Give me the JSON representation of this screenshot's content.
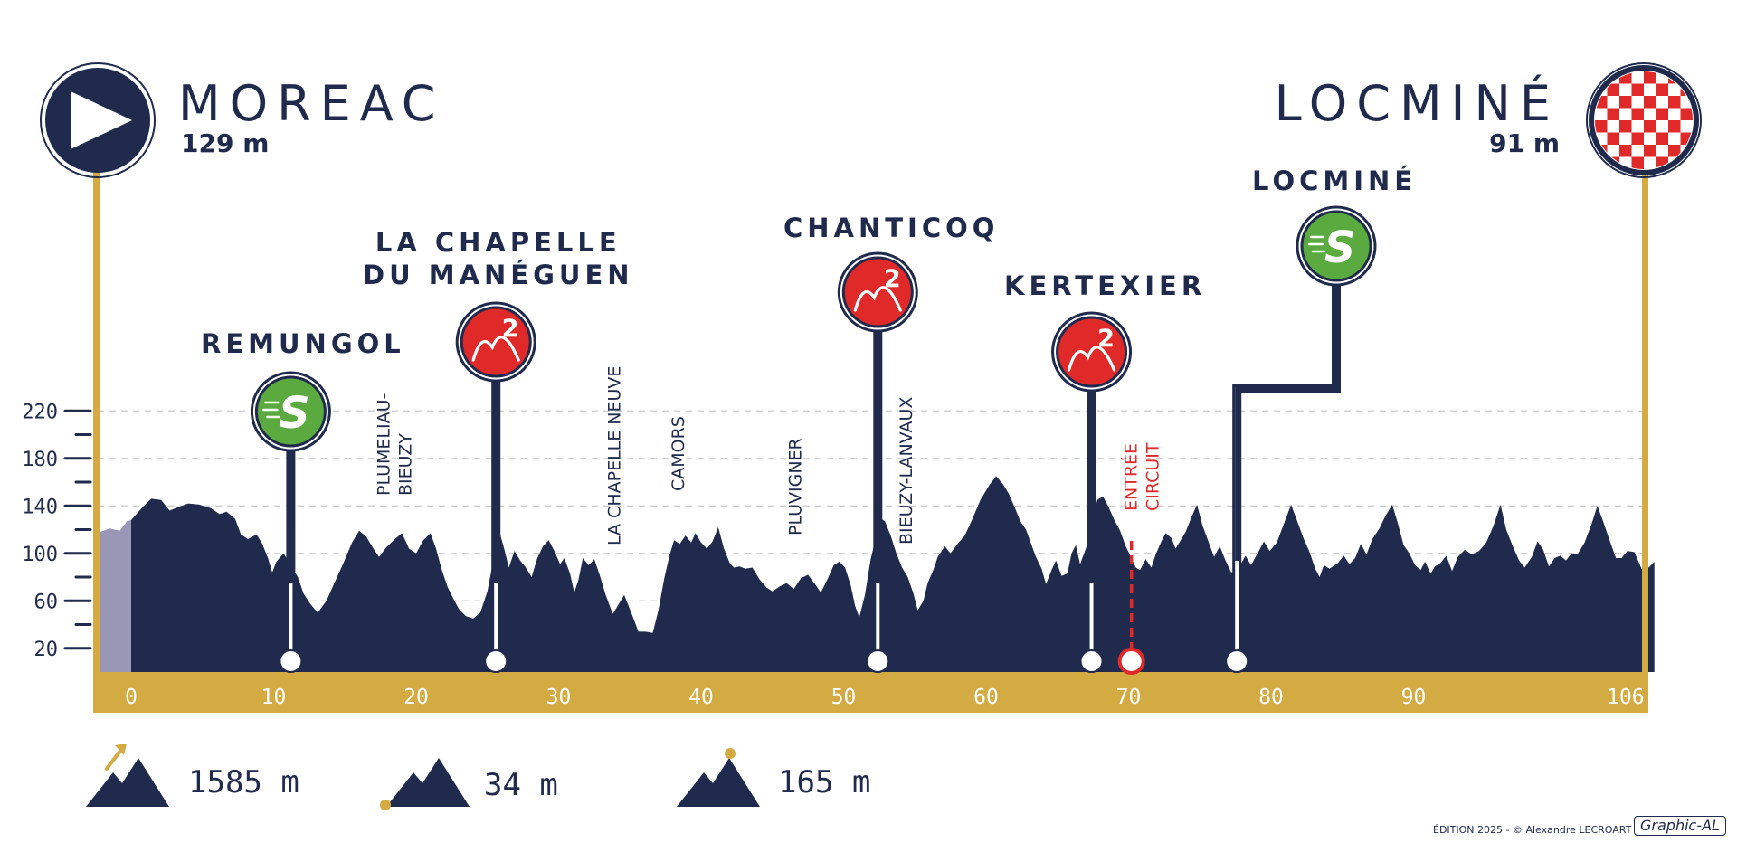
{
  "start": {
    "city": "MOREAC",
    "altitude": "129 m"
  },
  "finish": {
    "city": "LOCMINÉ",
    "altitude": "91 m"
  },
  "climbs": [
    {
      "name": "REMUNGOL",
      "type": "sprint",
      "badge": "S",
      "km": 11.2
    },
    {
      "name": "LA CHAPELLE\nDU MANÉGUEN",
      "type": "climb",
      "badge": "2",
      "km": 25.6
    },
    {
      "name": "CHANTICOQ",
      "type": "climb",
      "badge": "2",
      "km": 52.4
    },
    {
      "name": "KERTEXIER",
      "type": "climb",
      "badge": "2",
      "km": 67.4
    },
    {
      "name": "LOCMINÉ",
      "type": "sprint",
      "badge": "S",
      "km": 77.6
    }
  ],
  "circuit_entry": {
    "label": "ENTRÉE\nCIRCUIT",
    "km": 70.2
  },
  "towns": [
    {
      "name": "PLUMELIAU-\nBIEUZY",
      "km": 18.5
    },
    {
      "name": "LA CHAPELLE NEUVE",
      "km": 33.8
    },
    {
      "name": "CAMORS",
      "km": 38.3
    },
    {
      "name": "PLUVIGNER",
      "km": 46.5
    },
    {
      "name": "BIEUZY-LANVAUX",
      "km": 54.3
    }
  ],
  "stats": {
    "total_climbing": "1585 m",
    "min_altitude": "34 m",
    "max_altitude": "165 m"
  },
  "credit": "ÉDITION 2025 - © Alexandre LECROART",
  "brand": "Graphic-AL",
  "colors": {
    "navy": "#1f2a4d",
    "gold": "#d4aa42",
    "sprint_green": "#5aaa3f",
    "climb_red": "#e02a2a",
    "neutral_zone": "#9996b6"
  },
  "chart_data": {
    "type": "area",
    "xlabel": "",
    "ylabel": "",
    "xlim": [
      0,
      106.9
    ],
    "ylim": [
      0,
      240
    ],
    "x_ticks": [
      {
        "v": 0,
        "l": "0"
      },
      {
        "v": 10,
        "l": "10"
      },
      {
        "v": 20,
        "l": "20"
      },
      {
        "v": 30,
        "l": "30"
      },
      {
        "v": 40,
        "l": "40"
      },
      {
        "v": 50,
        "l": "50"
      },
      {
        "v": 60,
        "l": "60"
      },
      {
        "v": 70,
        "l": "70"
      },
      {
        "v": 80,
        "l": "80"
      },
      {
        "v": 90,
        "l": "90"
      },
      {
        "v": 106.9,
        "l": "106,9"
      }
    ],
    "y_ticks": [
      20,
      60,
      100,
      140,
      180,
      220
    ],
    "grid": true,
    "neutral_zone": [
      -2.2,
      0
    ],
    "profile": [
      [
        -2.2,
        118
      ],
      [
        -1.5,
        121
      ],
      [
        -0.8,
        119
      ],
      [
        -0.3,
        127
      ],
      [
        0,
        128
      ],
      [
        0.8,
        139
      ],
      [
        1.4,
        146
      ],
      [
        2.1,
        145
      ],
      [
        2.7,
        136
      ],
      [
        3.3,
        139
      ],
      [
        4,
        142
      ],
      [
        4.8,
        141
      ],
      [
        5.6,
        138
      ],
      [
        6.2,
        133
      ],
      [
        6.7,
        135
      ],
      [
        7.3,
        129
      ],
      [
        7.7,
        116
      ],
      [
        8.2,
        112
      ],
      [
        8.8,
        116
      ],
      [
        9.2,
        108
      ],
      [
        9.6,
        96
      ],
      [
        9.9,
        84
      ],
      [
        10.2,
        93
      ],
      [
        10.7,
        100
      ],
      [
        11.2,
        90
      ],
      [
        11.7,
        80
      ],
      [
        12.1,
        66
      ],
      [
        12.6,
        57
      ],
      [
        13.1,
        50
      ],
      [
        13.7,
        60
      ],
      [
        14.3,
        76
      ],
      [
        14.9,
        92
      ],
      [
        15.5,
        109
      ],
      [
        16,
        119
      ],
      [
        16.5,
        114
      ],
      [
        17,
        104
      ],
      [
        17.4,
        97
      ],
      [
        17.9,
        105
      ],
      [
        18.5,
        112
      ],
      [
        19,
        117
      ],
      [
        19.5,
        104
      ],
      [
        20,
        100
      ],
      [
        20.5,
        111
      ],
      [
        21,
        117
      ],
      [
        21.4,
        104
      ],
      [
        21.8,
        86
      ],
      [
        22.2,
        72
      ],
      [
        22.6,
        62
      ],
      [
        23,
        53
      ],
      [
        23.5,
        47
      ],
      [
        24,
        45
      ],
      [
        24.5,
        50
      ],
      [
        25,
        68
      ],
      [
        25.4,
        93
      ],
      [
        25.8,
        120
      ],
      [
        26.2,
        103
      ],
      [
        26.5,
        88
      ],
      [
        26.9,
        102
      ],
      [
        27.3,
        94
      ],
      [
        27.7,
        88
      ],
      [
        28.1,
        80
      ],
      [
        28.5,
        96
      ],
      [
        28.9,
        106
      ],
      [
        29.3,
        111
      ],
      [
        29.7,
        102
      ],
      [
        30.1,
        91
      ],
      [
        30.4,
        96
      ],
      [
        30.8,
        83
      ],
      [
        31.1,
        67
      ],
      [
        31.4,
        78
      ],
      [
        31.7,
        96
      ],
      [
        32.1,
        90
      ],
      [
        32.5,
        95
      ],
      [
        32.9,
        81
      ],
      [
        33.3,
        65
      ],
      [
        33.8,
        49
      ],
      [
        34.2,
        57
      ],
      [
        34.6,
        65
      ],
      [
        35.1,
        50
      ],
      [
        35.6,
        34
      ],
      [
        36.1,
        34
      ],
      [
        36.6,
        33
      ],
      [
        37,
        52
      ],
      [
        37.4,
        78
      ],
      [
        37.8,
        99
      ],
      [
        38.1,
        111
      ],
      [
        38.5,
        108
      ],
      [
        38.9,
        115
      ],
      [
        39.3,
        109
      ],
      [
        39.6,
        117
      ],
      [
        40,
        109
      ],
      [
        40.4,
        104
      ],
      [
        40.8,
        110
      ],
      [
        41.2,
        122
      ],
      [
        41.6,
        104
      ],
      [
        42,
        92
      ],
      [
        42.3,
        88
      ],
      [
        42.7,
        89
      ],
      [
        43.1,
        87
      ],
      [
        43.6,
        88
      ],
      [
        44.1,
        78
      ],
      [
        44.6,
        71
      ],
      [
        45,
        68
      ],
      [
        45.5,
        72
      ],
      [
        46,
        75
      ],
      [
        46.5,
        70
      ],
      [
        47,
        79
      ],
      [
        47.5,
        82
      ],
      [
        48,
        74
      ],
      [
        48.4,
        67
      ],
      [
        48.9,
        79
      ],
      [
        49.3,
        90
      ],
      [
        49.7,
        93
      ],
      [
        50.1,
        88
      ],
      [
        50.5,
        73
      ],
      [
        50.8,
        56
      ],
      [
        51.1,
        46
      ],
      [
        51.5,
        65
      ],
      [
        51.9,
        95
      ],
      [
        52.2,
        110
      ],
      [
        52.5,
        130
      ],
      [
        52.9,
        127
      ],
      [
        53.3,
        115
      ],
      [
        53.7,
        100
      ],
      [
        54.1,
        88
      ],
      [
        54.5,
        80
      ],
      [
        54.9,
        66
      ],
      [
        55.2,
        52
      ],
      [
        55.6,
        60
      ],
      [
        55.9,
        75
      ],
      [
        56.3,
        86
      ],
      [
        56.6,
        97
      ],
      [
        57.1,
        106
      ],
      [
        57.5,
        100
      ],
      [
        58,
        108
      ],
      [
        58.5,
        115
      ],
      [
        59,
        128
      ],
      [
        59.6,
        145
      ],
      [
        60.2,
        157
      ],
      [
        60.7,
        165
      ],
      [
        61.2,
        158
      ],
      [
        61.6,
        150
      ],
      [
        62,
        139
      ],
      [
        62.4,
        127
      ],
      [
        62.8,
        120
      ],
      [
        63.1,
        110
      ],
      [
        63.5,
        97
      ],
      [
        63.9,
        87
      ],
      [
        64.2,
        74
      ],
      [
        64.6,
        86
      ],
      [
        64.9,
        94
      ],
      [
        65.3,
        81
      ],
      [
        65.7,
        83
      ],
      [
        66,
        100
      ],
      [
        66.3,
        107
      ],
      [
        66.6,
        91
      ],
      [
        67,
        104
      ],
      [
        67.3,
        117
      ],
      [
        67.8,
        145
      ],
      [
        68.2,
        148
      ],
      [
        68.6,
        139
      ],
      [
        69,
        128
      ],
      [
        69.4,
        119
      ],
      [
        69.8,
        106
      ],
      [
        70.2,
        96
      ],
      [
        70.5,
        88
      ],
      [
        70.8,
        86
      ],
      [
        71.2,
        95
      ],
      [
        71.6,
        88
      ],
      [
        71.9,
        99
      ],
      [
        72.3,
        110
      ],
      [
        72.6,
        117
      ],
      [
        73,
        113
      ],
      [
        73.3,
        104
      ],
      [
        73.7,
        112
      ],
      [
        74,
        118
      ],
      [
        74.4,
        130
      ],
      [
        74.8,
        141
      ],
      [
        75.2,
        123
      ],
      [
        75.6,
        110
      ],
      [
        76,
        97
      ],
      [
        76.4,
        106
      ],
      [
        76.8,
        94
      ],
      [
        77.2,
        84
      ],
      [
        77.6,
        85
      ],
      [
        78.2,
        98
      ],
      [
        78.6,
        90
      ],
      [
        79,
        99
      ],
      [
        79.5,
        110
      ],
      [
        79.9,
        102
      ],
      [
        80.4,
        109
      ],
      [
        80.9,
        125
      ],
      [
        81.4,
        141
      ],
      [
        81.9,
        125
      ],
      [
        82.3,
        112
      ],
      [
        82.7,
        101
      ],
      [
        83.1,
        87
      ],
      [
        83.4,
        80
      ],
      [
        83.7,
        90
      ],
      [
        84.1,
        87
      ],
      [
        84.7,
        92
      ],
      [
        85.1,
        98
      ],
      [
        85.5,
        91
      ],
      [
        85.9,
        96
      ],
      [
        86.3,
        108
      ],
      [
        86.7,
        99
      ],
      [
        87.1,
        112
      ],
      [
        87.6,
        121
      ],
      [
        88,
        131
      ],
      [
        88.5,
        141
      ],
      [
        88.9,
        125
      ],
      [
        89.3,
        107
      ],
      [
        89.7,
        100
      ],
      [
        90.1,
        90
      ],
      [
        90.5,
        86
      ],
      [
        90.8,
        93
      ],
      [
        91.2,
        83
      ],
      [
        91.5,
        89
      ],
      [
        91.9,
        92
      ],
      [
        92.3,
        98
      ],
      [
        92.7,
        85
      ],
      [
        93.1,
        97
      ],
      [
        93.6,
        103
      ],
      [
        94.1,
        99
      ],
      [
        94.6,
        102
      ],
      [
        95.1,
        109
      ],
      [
        95.6,
        123
      ],
      [
        96.1,
        141
      ],
      [
        96.5,
        120
      ],
      [
        97,
        105
      ],
      [
        97.4,
        94
      ],
      [
        97.8,
        88
      ],
      [
        98.3,
        97
      ],
      [
        98.7,
        110
      ],
      [
        99.1,
        103
      ],
      [
        99.5,
        89
      ],
      [
        99.9,
        96
      ],
      [
        100.3,
        98
      ],
      [
        100.7,
        94
      ],
      [
        101.1,
        100
      ],
      [
        101.5,
        99
      ],
      [
        102,
        109
      ],
      [
        102.5,
        125
      ],
      [
        102.9,
        140
      ],
      [
        103.3,
        127
      ],
      [
        103.7,
        113
      ],
      [
        104.2,
        96
      ],
      [
        104.6,
        96
      ],
      [
        105,
        102
      ],
      [
        105.5,
        101
      ],
      [
        106,
        87
      ],
      [
        106.5,
        88
      ],
      [
        106.9,
        93
      ]
    ]
  }
}
